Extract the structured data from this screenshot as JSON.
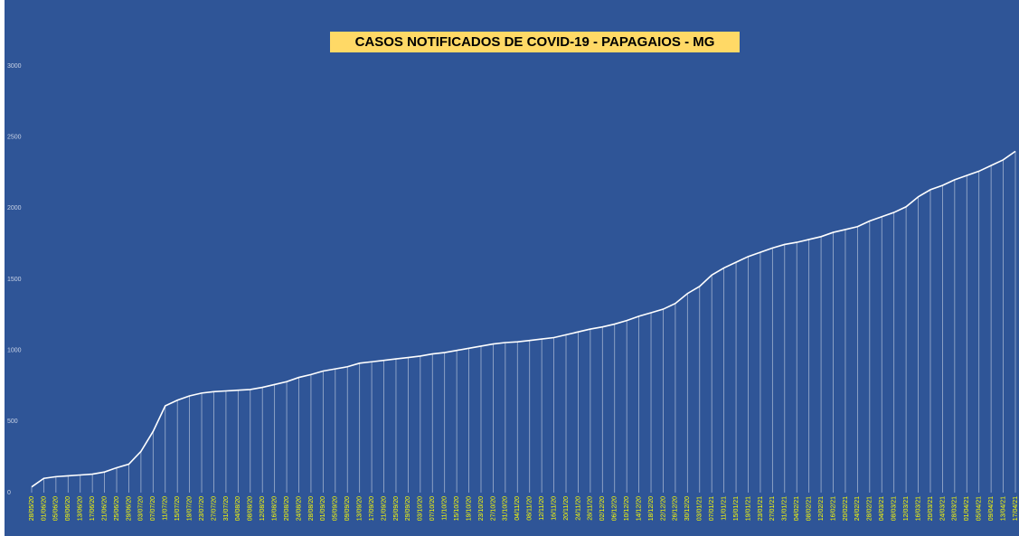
{
  "chart_data": {
    "type": "line",
    "title": "CASOS NOTIFICADOS DE COVID-19 - PAPAGAIOS - MG",
    "categories": [
      "28/05/20",
      "01/06/20",
      "05/06/20",
      "09/06/20",
      "13/06/20",
      "17/06/20",
      "21/06/20",
      "25/06/20",
      "29/06/20",
      "03/07/20",
      "07/07/20",
      "11/07/20",
      "15/07/20",
      "19/07/20",
      "23/07/20",
      "27/07/20",
      "31/07/20",
      "04/08/20",
      "08/08/20",
      "12/08/20",
      "16/08/20",
      "20/08/20",
      "24/08/20",
      "28/08/20",
      "01/09/20",
      "05/09/20",
      "09/09/20",
      "13/09/20",
      "17/09/20",
      "21/09/20",
      "25/09/20",
      "29/09/20",
      "03/10/20",
      "07/10/20",
      "11/10/20",
      "15/10/20",
      "19/10/20",
      "23/10/20",
      "27/10/20",
      "31/10/20",
      "04/11/20",
      "08/11/20",
      "12/11/20",
      "16/11/20",
      "20/11/20",
      "24/11/20",
      "28/11/20",
      "02/12/20",
      "06/12/20",
      "10/12/20",
      "14/12/20",
      "18/12/20",
      "22/12/20",
      "26/12/20",
      "30/12/20",
      "03/01/21",
      "07/01/21",
      "11/01/21",
      "15/01/21",
      "19/01/21",
      "23/01/21",
      "27/01/21",
      "31/01/21",
      "04/02/21",
      "08/02/21",
      "12/02/21",
      "16/02/21",
      "20/02/21",
      "24/02/21",
      "28/02/21",
      "04/03/21",
      "08/03/21",
      "12/03/21",
      "16/03/21",
      "20/03/21",
      "24/03/21",
      "28/03/21",
      "01/04/21",
      "05/04/21",
      "09/04/21",
      "13/04/21",
      "17/04/21"
    ],
    "values": [
      40,
      100,
      112,
      118,
      124,
      130,
      145,
      175,
      200,
      290,
      430,
      610,
      650,
      680,
      700,
      710,
      715,
      720,
      725,
      740,
      760,
      780,
      810,
      830,
      855,
      870,
      885,
      910,
      920,
      930,
      940,
      950,
      960,
      975,
      985,
      1000,
      1015,
      1030,
      1045,
      1055,
      1060,
      1070,
      1080,
      1090,
      1110,
      1130,
      1150,
      1165,
      1185,
      1210,
      1240,
      1265,
      1290,
      1330,
      1400,
      1450,
      1530,
      1580,
      1620,
      1660,
      1690,
      1720,
      1745,
      1760,
      1780,
      1800,
      1830,
      1850,
      1870,
      1910,
      1940,
      1970,
      2010,
      2080,
      2130,
      2160,
      2200,
      2230,
      2260,
      2300,
      2340,
      2400
    ],
    "color": "#ffffff",
    "ylim": [
      0,
      3000
    ],
    "yticks": [
      0,
      500,
      1000,
      1500,
      2000,
      2500,
      3000
    ],
    "grid": false
  }
}
